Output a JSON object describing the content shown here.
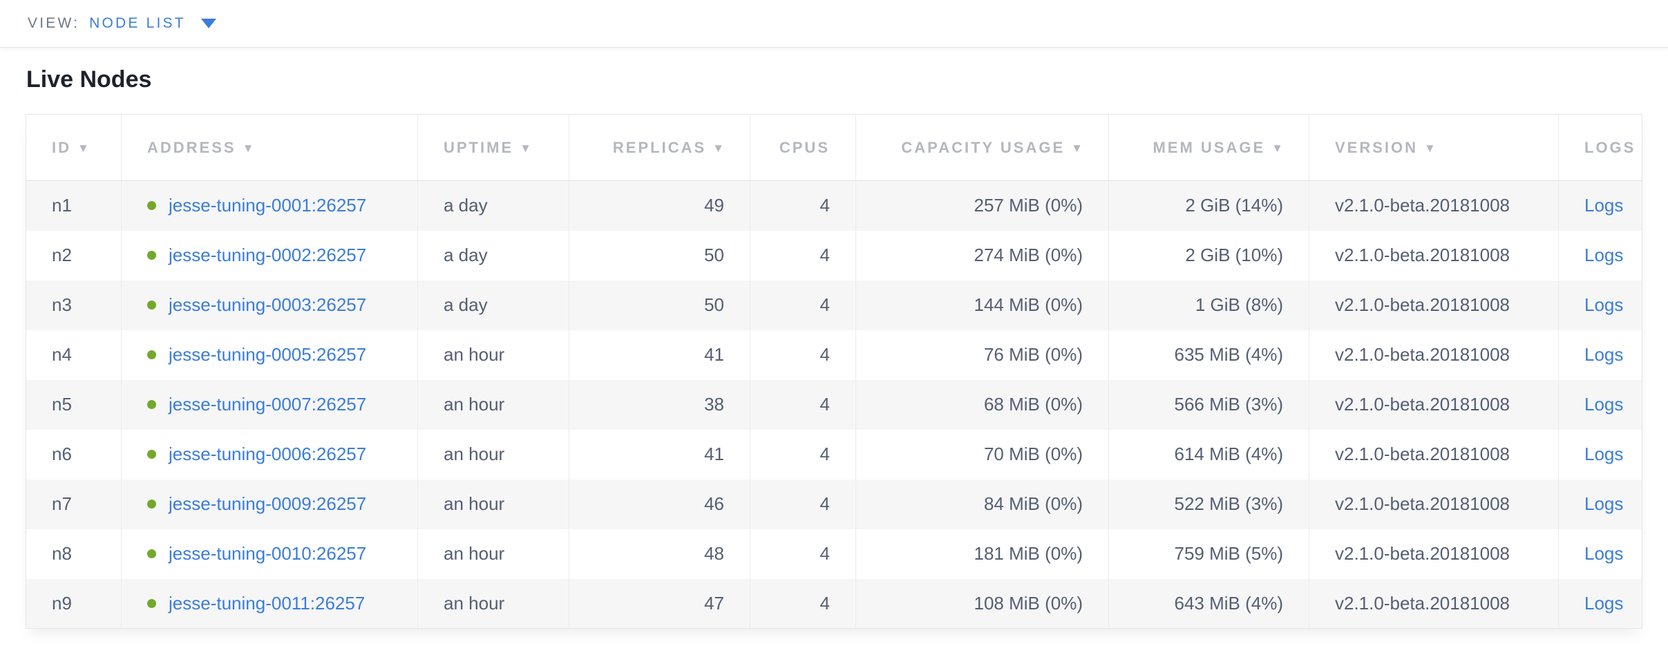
{
  "view_bar": {
    "label": "VIEW:",
    "selected": "NODE LIST"
  },
  "page": {
    "title": "Live Nodes"
  },
  "colors": {
    "accent_blue": "#3B7DD9",
    "healthy_green": "#74A82C",
    "header_text_gray": "#B4B7BD",
    "body_text": "#555E72",
    "row_stripe": "#F6F6F7"
  },
  "table": {
    "sort_indicator": "▼",
    "columns": [
      {
        "key": "id",
        "label": "ID",
        "sortable": true
      },
      {
        "key": "address",
        "label": "ADDRESS",
        "sortable": true
      },
      {
        "key": "uptime",
        "label": "UPTIME",
        "sortable": true
      },
      {
        "key": "replicas",
        "label": "REPLICAS",
        "sortable": true
      },
      {
        "key": "cpus",
        "label": "CPUS",
        "sortable": false
      },
      {
        "key": "capacity",
        "label": "CAPACITY USAGE",
        "sortable": true
      },
      {
        "key": "mem",
        "label": "MEM USAGE",
        "sortable": true
      },
      {
        "key": "version",
        "label": "VERSION",
        "sortable": true
      },
      {
        "key": "logs",
        "label": "LOGS",
        "sortable": false
      }
    ],
    "rows": [
      {
        "id": "n1",
        "status": "healthy",
        "address": "jesse-tuning-0001:26257",
        "uptime": "a day",
        "replicas": "49",
        "cpus": "4",
        "capacity": "257 MiB (0%)",
        "mem": "2 GiB (14%)",
        "version": "v2.1.0-beta.20181008",
        "logs": "Logs"
      },
      {
        "id": "n2",
        "status": "healthy",
        "address": "jesse-tuning-0002:26257",
        "uptime": "a day",
        "replicas": "50",
        "cpus": "4",
        "capacity": "274 MiB (0%)",
        "mem": "2 GiB (10%)",
        "version": "v2.1.0-beta.20181008",
        "logs": "Logs"
      },
      {
        "id": "n3",
        "status": "healthy",
        "address": "jesse-tuning-0003:26257",
        "uptime": "a day",
        "replicas": "50",
        "cpus": "4",
        "capacity": "144 MiB (0%)",
        "mem": "1 GiB (8%)",
        "version": "v2.1.0-beta.20181008",
        "logs": "Logs"
      },
      {
        "id": "n4",
        "status": "healthy",
        "address": "jesse-tuning-0005:26257",
        "uptime": "an hour",
        "replicas": "41",
        "cpus": "4",
        "capacity": "76 MiB (0%)",
        "mem": "635 MiB (4%)",
        "version": "v2.1.0-beta.20181008",
        "logs": "Logs"
      },
      {
        "id": "n5",
        "status": "healthy",
        "address": "jesse-tuning-0007:26257",
        "uptime": "an hour",
        "replicas": "38",
        "cpus": "4",
        "capacity": "68 MiB (0%)",
        "mem": "566 MiB (3%)",
        "version": "v2.1.0-beta.20181008",
        "logs": "Logs"
      },
      {
        "id": "n6",
        "status": "healthy",
        "address": "jesse-tuning-0006:26257",
        "uptime": "an hour",
        "replicas": "41",
        "cpus": "4",
        "capacity": "70 MiB (0%)",
        "mem": "614 MiB (4%)",
        "version": "v2.1.0-beta.20181008",
        "logs": "Logs"
      },
      {
        "id": "n7",
        "status": "healthy",
        "address": "jesse-tuning-0009:26257",
        "uptime": "an hour",
        "replicas": "46",
        "cpus": "4",
        "capacity": "84 MiB (0%)",
        "mem": "522 MiB (3%)",
        "version": "v2.1.0-beta.20181008",
        "logs": "Logs"
      },
      {
        "id": "n8",
        "status": "healthy",
        "address": "jesse-tuning-0010:26257",
        "uptime": "an hour",
        "replicas": "48",
        "cpus": "4",
        "capacity": "181 MiB (0%)",
        "mem": "759 MiB (5%)",
        "version": "v2.1.0-beta.20181008",
        "logs": "Logs"
      },
      {
        "id": "n9",
        "status": "healthy",
        "address": "jesse-tuning-0011:26257",
        "uptime": "an hour",
        "replicas": "47",
        "cpus": "4",
        "capacity": "108 MiB (0%)",
        "mem": "643 MiB (4%)",
        "version": "v2.1.0-beta.20181008",
        "logs": "Logs"
      }
    ]
  }
}
